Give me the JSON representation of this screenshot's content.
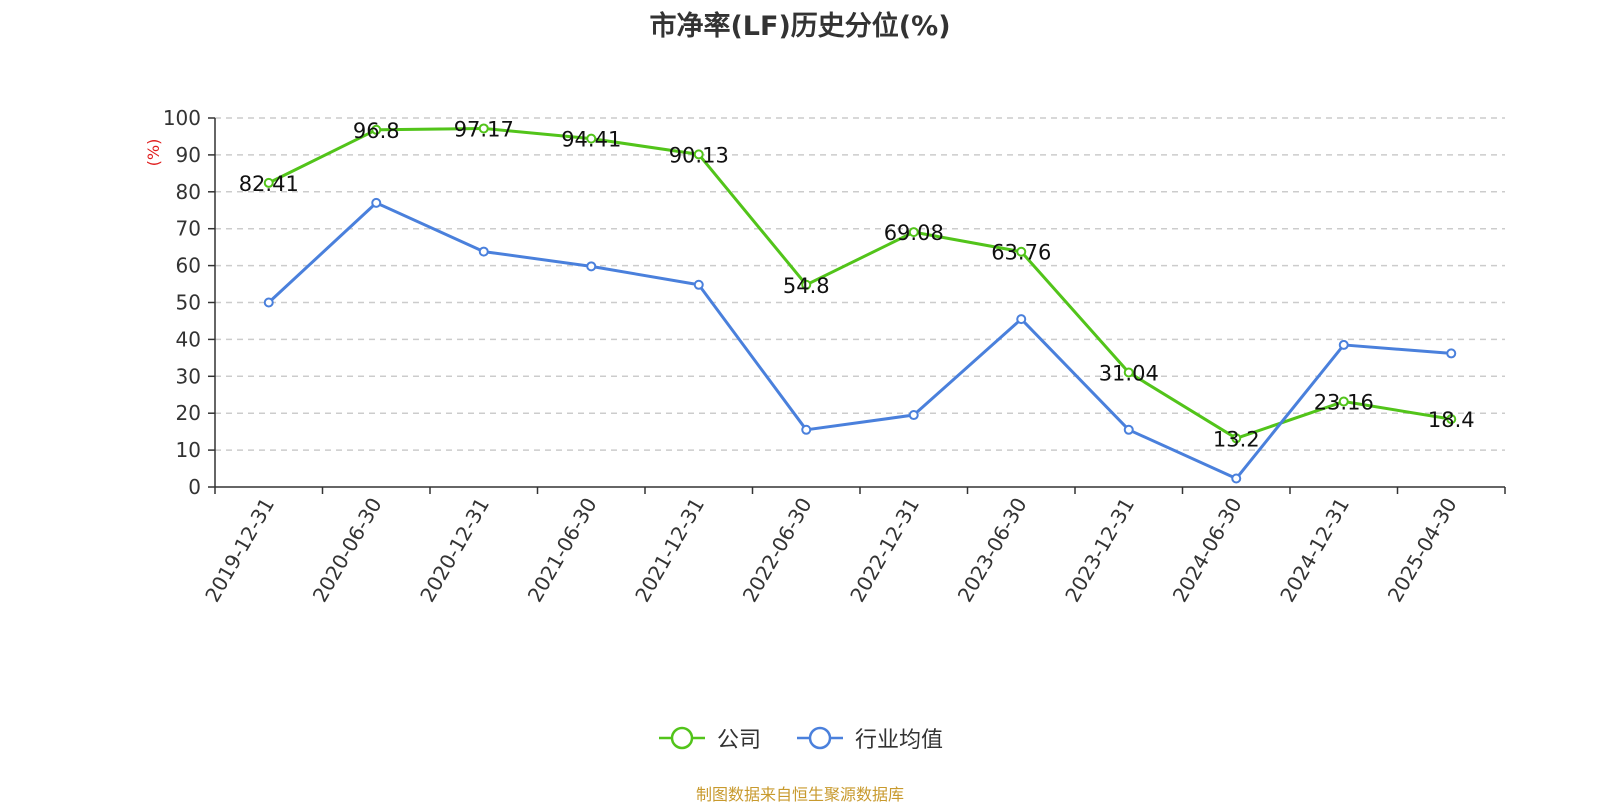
{
  "chart_data": {
    "type": "line",
    "title": "市净率(LF)历史分位(%)",
    "ylabel": "(%)",
    "ylim": [
      0,
      100
    ],
    "yticks": [
      0,
      10,
      20,
      30,
      40,
      50,
      60,
      70,
      80,
      90,
      100
    ],
    "grid": true,
    "legend_position": "bottom-center",
    "categories": [
      "2019-12-31",
      "2020-06-30",
      "2020-12-31",
      "2021-06-30",
      "2021-12-31",
      "2022-06-30",
      "2022-12-31",
      "2023-06-30",
      "2023-12-31",
      "2024-06-30",
      "2024-12-31",
      "2025-04-30"
    ],
    "series": [
      {
        "name": "公司",
        "color": "#52c41a",
        "show_labels": true,
        "values": [
          82.41,
          96.8,
          97.17,
          94.41,
          90.13,
          54.8,
          69.08,
          63.76,
          31.04,
          13.2,
          23.16,
          18.4
        ]
      },
      {
        "name": "行业均值",
        "color": "#4a80dc",
        "show_labels": false,
        "values": [
          50,
          77,
          63.8,
          59.8,
          54.8,
          15.5,
          19.5,
          45.5,
          15.5,
          2.3,
          38.5,
          36.2
        ]
      }
    ]
  },
  "footer": {
    "source": "制图数据来自恒生聚源数据库"
  },
  "colors": {
    "ylabel": "#e02020",
    "axis": "#333333",
    "grid": "#cccccc",
    "source": "#c89a2e"
  }
}
